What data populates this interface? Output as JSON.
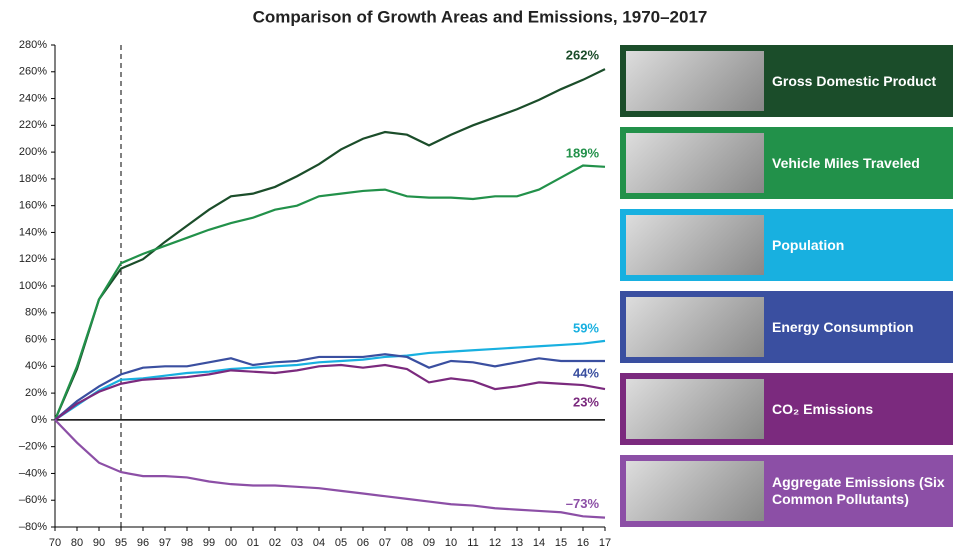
{
  "chart_data": {
    "type": "line",
    "title": "Comparison of Growth Areas and Emissions, 1970–2017",
    "categories": [
      "70",
      "80",
      "90",
      "95",
      "96",
      "97",
      "98",
      "99",
      "00",
      "01",
      "02",
      "03",
      "04",
      "05",
      "06",
      "07",
      "08",
      "09",
      "10",
      "11",
      "12",
      "13",
      "14",
      "15",
      "16",
      "17"
    ],
    "ylim": [
      -80,
      280
    ],
    "yticks": [
      {
        "value": -80,
        "label": "–80%"
      },
      {
        "value": -60,
        "label": "–60%"
      },
      {
        "value": -40,
        "label": "–40%"
      },
      {
        "value": -20,
        "label": "–20%"
      },
      {
        "value": 0,
        "label": "0%"
      },
      {
        "value": 20,
        "label": "20%"
      },
      {
        "value": 40,
        "label": "40%"
      },
      {
        "value": 60,
        "label": "60%"
      },
      {
        "value": 80,
        "label": "80%"
      },
      {
        "value": 100,
        "label": "100%"
      },
      {
        "value": 120,
        "label": "120%"
      },
      {
        "value": 140,
        "label": "140%"
      },
      {
        "value": 160,
        "label": "160%"
      },
      {
        "value": 180,
        "label": "180%"
      },
      {
        "value": 200,
        "label": "200%"
      },
      {
        "value": 220,
        "label": "220%"
      },
      {
        "value": 240,
        "label": "240%"
      },
      {
        "value": 260,
        "label": "260%"
      },
      {
        "value": 280,
        "label": "280%"
      }
    ],
    "series": [
      {
        "name": "Gross Domestic Product",
        "color": "#1b4d2a",
        "values": [
          0,
          38,
          90,
          113,
          120,
          133,
          145,
          157,
          167,
          169,
          174,
          182,
          191,
          202,
          210,
          215,
          213,
          205,
          213,
          220,
          226,
          232,
          239,
          247,
          254,
          262
        ],
        "value_labels": [
          null,
          null,
          null,
          null,
          null,
          null,
          null,
          null,
          null,
          null,
          null,
          null,
          null,
          null,
          null,
          null,
          null,
          null,
          null,
          null,
          null,
          null,
          null,
          null,
          null,
          "262%"
        ]
      },
      {
        "name": "Vehicle Miles Traveled",
        "color": "#22914a",
        "values": [
          0,
          40,
          90,
          117,
          124,
          130,
          136,
          142,
          147,
          151,
          157,
          160,
          167,
          169,
          171,
          172,
          167,
          166,
          166,
          165,
          167,
          167,
          172,
          181,
          190,
          189
        ],
        "value_labels": [
          null,
          null,
          null,
          null,
          null,
          null,
          null,
          null,
          null,
          null,
          null,
          null,
          null,
          null,
          null,
          null,
          null,
          null,
          null,
          null,
          null,
          null,
          null,
          null,
          null,
          "189%"
        ]
      },
      {
        "name": "Population",
        "color": "#18b0e0",
        "values": [
          0,
          11,
          22,
          30,
          31,
          33,
          35,
          36,
          38,
          39,
          40,
          41,
          43,
          44,
          45,
          47,
          48,
          50,
          51,
          52,
          53,
          54,
          55,
          56,
          57,
          59
        ],
        "value_labels": [
          null,
          null,
          null,
          null,
          null,
          null,
          null,
          null,
          null,
          null,
          null,
          null,
          null,
          null,
          null,
          null,
          null,
          null,
          null,
          null,
          null,
          null,
          null,
          null,
          null,
          "59%"
        ]
      },
      {
        "name": "Energy Consumption",
        "color": "#3a4fa0",
        "values": [
          0,
          14,
          25,
          34,
          39,
          40,
          40,
          43,
          46,
          41,
          43,
          44,
          47,
          47,
          47,
          49,
          47,
          39,
          44,
          43,
          40,
          43,
          46,
          44,
          44,
          44
        ],
        "value_labels": [
          null,
          null,
          null,
          null,
          null,
          null,
          null,
          null,
          null,
          null,
          null,
          null,
          null,
          null,
          null,
          null,
          null,
          null,
          null,
          null,
          null,
          null,
          null,
          null,
          null,
          "44%"
        ]
      },
      {
        "name": "CO₂ Emissions",
        "color": "#7b2a7e",
        "values": [
          0,
          12,
          21,
          27,
          30,
          31,
          32,
          34,
          37,
          36,
          35,
          37,
          40,
          41,
          39,
          41,
          38,
          28,
          31,
          29,
          23,
          25,
          28,
          27,
          26,
          23
        ],
        "value_labels": [
          null,
          null,
          null,
          null,
          null,
          null,
          null,
          null,
          null,
          null,
          null,
          null,
          null,
          null,
          null,
          null,
          null,
          null,
          null,
          null,
          null,
          null,
          null,
          null,
          null,
          "23%"
        ]
      },
      {
        "name": "Aggregate Emissions (Six Common Pollutants)",
        "color": "#8c4fa6",
        "values": [
          0,
          -17,
          -32,
          -39,
          -42,
          -42,
          -43,
          -46,
          -48,
          -49,
          -49,
          -50,
          -51,
          -53,
          -55,
          -57,
          -59,
          -61,
          -63,
          -64,
          -66,
          -67,
          -68,
          -69,
          -72,
          -73
        ],
        "value_labels": [
          null,
          null,
          null,
          null,
          null,
          null,
          null,
          null,
          null,
          null,
          null,
          null,
          null,
          null,
          null,
          null,
          null,
          null,
          null,
          null,
          null,
          null,
          null,
          null,
          null,
          "–73%"
        ]
      }
    ]
  }
}
